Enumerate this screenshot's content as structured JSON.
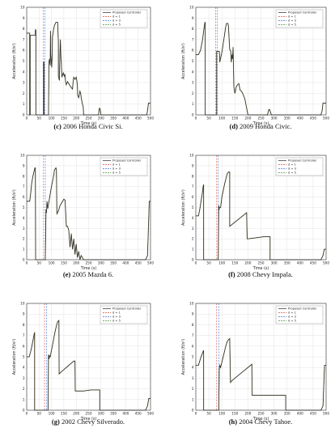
{
  "chart_data": [
    {
      "type": "line",
      "caption_letter": "(c)",
      "caption_text": " 2006 Honda Civic Si.",
      "xlabel": "Time (s)",
      "ylabel": "Acceleration (ft/s²)",
      "xlim": [
        0,
        500
      ],
      "ylim": [
        0,
        10
      ],
      "xticks": [
        0,
        50,
        100,
        150,
        200,
        250,
        300,
        350,
        400,
        450,
        500
      ],
      "yticks": [
        0,
        1,
        2,
        3,
        4,
        5,
        6,
        7,
        8,
        9,
        10
      ],
      "grid": true,
      "legend": [
        "Proposed Controller",
        "d = 1",
        "d = 3",
        "d = 5"
      ],
      "legend_position": "top-right",
      "vlines": [
        67,
        74
      ],
      "series": [
        {
          "name": "Proposed Controller",
          "x": [
            0,
            5,
            12,
            12,
            14,
            14,
            35,
            35,
            37,
            37,
            68,
            68,
            70,
            70,
            88,
            90,
            92,
            95,
            96,
            97,
            99,
            101,
            103,
            104,
            106,
            108,
            110,
            112,
            114,
            116,
            118,
            120,
            125,
            128,
            128,
            132,
            134,
            136,
            138,
            140,
            142,
            146,
            148,
            150,
            152,
            154,
            156,
            158,
            160,
            165,
            170,
            178,
            185,
            188,
            190,
            195,
            200,
            203,
            205,
            206,
            210,
            215,
            218,
            220,
            225,
            228,
            230,
            232,
            235,
            237,
            240,
            245,
            250,
            260,
            270,
            285,
            290,
            293,
            296,
            300,
            305,
            310,
            330,
            360,
            400,
            440,
            470,
            485,
            488,
            492,
            496,
            500
          ],
          "y": [
            7.6,
            7.6,
            7.6,
            0.0,
            0.0,
            7.4,
            7.4,
            7.9,
            7.9,
            0.0,
            0.0,
            4.9,
            4.9,
            0.0,
            0.0,
            4.9,
            5.2,
            4.6,
            7.8,
            5.6,
            5.1,
            4.4,
            5.6,
            7.3,
            7.5,
            7.9,
            8.1,
            8.3,
            8.4,
            8.5,
            8.6,
            8.6,
            8.6,
            6.7,
            3.6,
            3.2,
            5.4,
            7.0,
            5.4,
            4.9,
            3.5,
            3.8,
            3.9,
            3.7,
            3.6,
            3.8,
            3.3,
            3.0,
            2.8,
            3.1,
            2.9,
            2.6,
            2.4,
            3.2,
            3.5,
            3.3,
            3.5,
            3.1,
            2.6,
            1.8,
            1.6,
            2.2,
            2.0,
            1.6,
            1.0,
            0.8,
            0.0,
            0.0,
            0.0,
            0.0,
            0.0,
            0.0,
            0.0,
            0.0,
            0.0,
            0.0,
            0.0,
            0.6,
            0.6,
            0.0,
            0.0,
            0.0,
            0.0,
            0.0,
            0.0,
            0.0,
            0.0,
            0.0,
            0.4,
            1.1,
            1.1,
            1.1
          ]
        },
        {
          "name": "d = 1",
          "x": [],
          "y": []
        },
        {
          "name": "d = 3",
          "x": [],
          "y": []
        },
        {
          "name": "d = 5",
          "x": [],
          "y": []
        }
      ]
    },
    {
      "type": "line",
      "caption_letter": "(d)",
      "caption_text": " 2009 Honda Civic.",
      "xlabel": "Time (s)",
      "ylabel": "Acceleration (ft/s²)",
      "xlim": [
        0,
        500
      ],
      "ylim": [
        0,
        10
      ],
      "xticks": [
        0,
        50,
        100,
        150,
        200,
        250,
        300,
        350,
        400,
        450,
        500
      ],
      "yticks": [
        0,
        1,
        2,
        3,
        4,
        5,
        6,
        7,
        8,
        9,
        10
      ],
      "grid": true,
      "legend": [
        "Proposed Controller",
        "d = 1",
        "d = 3",
        "d = 5"
      ],
      "legend_position": "top-right",
      "vlines": [
        76,
        83
      ],
      "series": [
        {
          "name": "Proposed Controller",
          "x": [
            0,
            10,
            12,
            18,
            22,
            26,
            30,
            33,
            35,
            36,
            36,
            38,
            45,
            48,
            48,
            55,
            75,
            80,
            80,
            82,
            90,
            92,
            92,
            100,
            105,
            110,
            114,
            118,
            120,
            123,
            125,
            130,
            134,
            136,
            139,
            141,
            143,
            146,
            150,
            152,
            155,
            160,
            165,
            170,
            175,
            180,
            183,
            188,
            192,
            196,
            200,
            205,
            210,
            230,
            260,
            275,
            280,
            283,
            290,
            300,
            330,
            400,
            460,
            480,
            485,
            488,
            492,
            500
          ],
          "y": [
            5.6,
            5.6,
            5.7,
            6.0,
            6.5,
            7.0,
            7.8,
            8.3,
            8.6,
            8.6,
            0.0,
            0.0,
            0.0,
            0.0,
            0.0,
            0.0,
            0.0,
            0.0,
            5.9,
            5.9,
            5.9,
            5.2,
            4.9,
            5.8,
            6.6,
            7.4,
            8.1,
            8.5,
            8.5,
            8.5,
            8.3,
            6.1,
            5.9,
            4.9,
            5.6,
            5.2,
            6.3,
            2.6,
            2.0,
            2.2,
            2.6,
            2.8,
            2.9,
            2.3,
            2.2,
            2.0,
            1.8,
            1.5,
            1.0,
            0.5,
            0.0,
            0.0,
            0.0,
            0.0,
            0.0,
            0.0,
            0.5,
            0.5,
            0.0,
            0.0,
            0.0,
            0.0,
            0.0,
            0.0,
            0.4,
            1.1,
            1.1,
            1.1
          ]
        },
        {
          "name": "d = 1",
          "x": [],
          "y": []
        },
        {
          "name": "d = 3",
          "x": [],
          "y": []
        },
        {
          "name": "d = 5",
          "x": [],
          "y": []
        }
      ]
    },
    {
      "type": "line",
      "caption_letter": "(e)",
      "caption_text": " 2005 Mazda 6.",
      "xlabel": "Time (s)",
      "ylabel": "Acceleration (ft/s²)",
      "xlim": [
        0,
        500
      ],
      "ylim": [
        0,
        10
      ],
      "xticks": [
        0,
        50,
        100,
        150,
        200,
        250,
        300,
        350,
        400,
        450,
        500
      ],
      "yticks": [
        0,
        1,
        2,
        3,
        4,
        5,
        6,
        7,
        8,
        9,
        10
      ],
      "grid": true,
      "legend": [
        "Proposed Controller",
        "d = 1",
        "d = 3",
        "d = 5"
      ],
      "legend_position": "top-right",
      "vlines": [
        68,
        75
      ],
      "series": [
        {
          "name": "Proposed Controller",
          "x": [
            0,
            12,
            15,
            20,
            25,
            30,
            33,
            35,
            36,
            36,
            38,
            40,
            42,
            45,
            46,
            47,
            60,
            75,
            78,
            80,
            82,
            85,
            90,
            95,
            100,
            105,
            110,
            112,
            118,
            120,
            122,
            127,
            130,
            132,
            135,
            140,
            145,
            150,
            155,
            160,
            165,
            170,
            175,
            180,
            185,
            190,
            195,
            200,
            205,
            210,
            215,
            220,
            230,
            260,
            300,
            350,
            400,
            470,
            480,
            488,
            495,
            500
          ],
          "y": [
            5.6,
            5.6,
            6.1,
            7.3,
            8.0,
            8.5,
            8.8,
            8.8,
            0.0,
            0.0,
            0.0,
            0.0,
            0.0,
            0.0,
            0.0,
            0.0,
            0.0,
            0.0,
            4.8,
            4.5,
            5.6,
            4.9,
            5.6,
            6.3,
            7.0,
            7.6,
            8.2,
            8.6,
            8.8,
            8.6,
            4.4,
            4.6,
            4.8,
            5.0,
            5.2,
            5.4,
            5.6,
            5.8,
            5.7,
            3.2,
            3.2,
            2.8,
            1.2,
            2.5,
            1.0,
            2.0,
            0.5,
            1.5,
            0.2,
            0.8,
            0.0,
            0.4,
            0.0,
            0.0,
            0.0,
            0.0,
            0.0,
            0.0,
            0.0,
            0.4,
            5.6,
            5.6
          ]
        },
        {
          "name": "d = 1",
          "x": [],
          "y": []
        },
        {
          "name": "d = 3",
          "x": [],
          "y": []
        },
        {
          "name": "d = 5",
          "x": [],
          "y": []
        }
      ]
    },
    {
      "type": "line",
      "caption_letter": "(f)",
      "caption_text": " 2008 Chevy Impala.",
      "xlabel": "Time (s)",
      "ylabel": "Acceleration (ft/s²)",
      "xlim": [
        0,
        500
      ],
      "ylim": [
        0,
        10
      ],
      "xticks": [
        0,
        50,
        100,
        150,
        200,
        250,
        300,
        350,
        400,
        450,
        500
      ],
      "yticks": [
        0,
        1,
        2,
        3,
        4,
        5,
        6,
        7,
        8,
        9,
        10
      ],
      "grid": true,
      "legend": [
        "Proposed Controller",
        "d = 1",
        "d = 3",
        "d = 5"
      ],
      "legend_position": "top-right",
      "vlines": [
        80,
        86
      ],
      "series": [
        {
          "name": "Proposed Controller",
          "x": [
            0,
            10,
            15,
            20,
            25,
            28,
            30,
            30,
            32,
            40,
            50,
            60,
            70,
            80,
            86,
            88,
            90,
            90,
            95,
            100,
            105,
            110,
            115,
            120,
            125,
            130,
            130,
            140,
            150,
            160,
            170,
            180,
            190,
            195,
            197,
            200,
            230,
            260,
            285,
            285,
            288,
            300,
            350,
            400,
            450,
            480,
            488,
            493,
            500
          ],
          "y": [
            4.2,
            4.2,
            4.8,
            5.6,
            6.4,
            7.0,
            7.2,
            0.0,
            0.0,
            0.0,
            0.0,
            0.0,
            0.0,
            0.0,
            0.0,
            5.2,
            4.8,
            5.0,
            5.0,
            6.0,
            6.6,
            7.2,
            7.7,
            8.2,
            8.4,
            8.4,
            3.2,
            3.4,
            3.6,
            3.8,
            4.0,
            4.2,
            4.4,
            4.5,
            2.0,
            2.0,
            2.1,
            2.2,
            2.2,
            0.0,
            0.0,
            0.0,
            0.0,
            0.0,
            0.0,
            0.0,
            0.4,
            1.0,
            1.0
          ]
        },
        {
          "name": "d = 1",
          "x": [],
          "y": []
        },
        {
          "name": "d = 3",
          "x": [],
          "y": []
        },
        {
          "name": "d = 5",
          "x": [],
          "y": []
        }
      ]
    },
    {
      "type": "line",
      "caption_letter": "(g)",
      "caption_text": " 2002 Chevy Silverado.",
      "xlabel": "Time (s)",
      "ylabel": "Acceleration (ft/s²)",
      "xlim": [
        0,
        500
      ],
      "ylim": [
        0,
        10
      ],
      "xticks": [
        0,
        50,
        100,
        150,
        200,
        250,
        300,
        350,
        400,
        450,
        500
      ],
      "yticks": [
        0,
        1,
        2,
        3,
        4,
        5,
        6,
        7,
        8,
        9,
        10
      ],
      "grid": true,
      "legend": [
        "Proposed Controller",
        "d = 1",
        "d = 3",
        "d = 5"
      ],
      "legend_position": "top-right",
      "vlines": [
        72,
        80
      ],
      "series": [
        {
          "name": "Proposed Controller",
          "x": [
            0,
            10,
            15,
            20,
            25,
            30,
            32,
            32,
            34,
            40,
            50,
            60,
            70,
            80,
            86,
            88,
            90,
            92,
            95,
            100,
            105,
            110,
            115,
            120,
            125,
            130,
            131,
            140,
            150,
            160,
            170,
            180,
            190,
            195,
            196,
            200,
            230,
            260,
            295,
            295,
            297,
            350,
            400,
            470,
            480,
            488,
            493,
            500
          ],
          "y": [
            5.0,
            5.0,
            5.4,
            5.9,
            6.5,
            7.1,
            7.3,
            0.0,
            0.0,
            0.0,
            0.0,
            0.0,
            0.0,
            0.0,
            0.0,
            5.2,
            4.8,
            5.1,
            5.0,
            5.6,
            6.2,
            6.8,
            7.4,
            7.9,
            8.3,
            8.4,
            3.4,
            3.6,
            3.8,
            4.0,
            4.2,
            4.4,
            4.6,
            4.6,
            1.8,
            1.8,
            1.8,
            1.9,
            1.9,
            0.0,
            0.0,
            0.0,
            0.0,
            0.0,
            0.0,
            0.4,
            1.1,
            1.1
          ]
        },
        {
          "name": "d = 1",
          "x": [],
          "y": []
        },
        {
          "name": "d = 3",
          "x": [],
          "y": []
        },
        {
          "name": "d = 5",
          "x": [],
          "y": []
        }
      ]
    },
    {
      "type": "line",
      "caption_letter": "(h)",
      "caption_text": " 2004 Chevy Tahoe.",
      "xlabel": "Time (s)",
      "ylabel": "Acceleration (ft/s²)",
      "xlim": [
        0,
        500
      ],
      "ylim": [
        0,
        10
      ],
      "xticks": [
        0,
        50,
        100,
        150,
        200,
        250,
        300,
        350,
        400,
        450,
        500
      ],
      "yticks": [
        0,
        1,
        2,
        3,
        4,
        5,
        6,
        7,
        8,
        9,
        10
      ],
      "grid": true,
      "legend": [
        "Proposed Controller",
        "d = 1",
        "d = 3",
        "d = 5"
      ],
      "legend_position": "top-right",
      "vlines": [
        80,
        88
      ],
      "series": [
        {
          "name": "Proposed Controller",
          "x": [
            0,
            10,
            15,
            20,
            25,
            28,
            30,
            30,
            35,
            50,
            70,
            88,
            90,
            92,
            95,
            100,
            105,
            110,
            115,
            120,
            125,
            130,
            133,
            140,
            150,
            160,
            170,
            180,
            190,
            200,
            210,
            215,
            216,
            230,
            260,
            300,
            345,
            345,
            347,
            400,
            450,
            480,
            488,
            494,
            500
          ],
          "y": [
            4.2,
            4.2,
            4.6,
            5.0,
            5.3,
            5.5,
            5.6,
            0.0,
            0.0,
            0.0,
            0.0,
            0.0,
            3.9,
            4.2,
            4.0,
            4.5,
            5.0,
            5.5,
            6.0,
            6.4,
            6.6,
            6.7,
            2.6,
            2.8,
            3.0,
            3.2,
            3.4,
            3.6,
            3.8,
            4.0,
            4.2,
            4.3,
            1.4,
            1.4,
            1.4,
            1.4,
            1.4,
            0.0,
            0.0,
            0.0,
            0.0,
            0.0,
            0.4,
            4.2,
            4.2
          ]
        },
        {
          "name": "d = 1",
          "x": [],
          "y": []
        },
        {
          "name": "d = 3",
          "x": [],
          "y": []
        },
        {
          "name": "d = 5",
          "x": [],
          "y": []
        }
      ]
    }
  ],
  "colors": {
    "proposed": "#2b2b2b",
    "d1": "#d94b3b",
    "d3": "#3f6fd8",
    "d5": "#4f8a3a",
    "grid": "#e3e3e3",
    "axis": "#333333"
  }
}
